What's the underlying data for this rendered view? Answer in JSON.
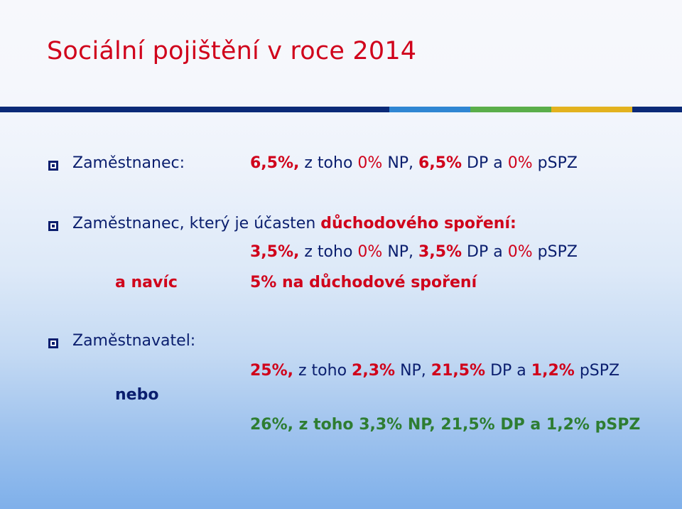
{
  "title": "Sociální pojištění v roce 2014",
  "colors": {
    "title": "#d0021b",
    "text": "#0a1e6e",
    "highlight": "#d0021b",
    "green": "#2e7d32"
  },
  "accent_bar": [
    {
      "color": "#0b2a78",
      "flex": 548
    },
    {
      "color": "#2f86d3",
      "flex": 114
    },
    {
      "color": "#5aae4a",
      "flex": 114
    },
    {
      "color": "#e3b21e",
      "flex": 114
    },
    {
      "color": "#0b2a78",
      "flex": 70
    }
  ],
  "employee": {
    "label": "Zaměstnanec:",
    "total": "6,5%,",
    "part1": "z toho",
    "np_value": "0%",
    "np": "NP,",
    "dp_value": "6,5%",
    "part2": "DP a",
    "pspz_value": "0%",
    "pspz": "pSPZ"
  },
  "saver": {
    "label_start": "Zaměstnanec, který je účasten",
    "label_highlight": "důchodového spoření:",
    "total": "3,5%,",
    "part1": "z toho",
    "np_value": "0%",
    "np": "NP,",
    "dp_value": "3,5%",
    "part2": "DP a",
    "pspz_value": "0%",
    "pspz": "pSPZ",
    "extra_label": "a navíc",
    "extra_text": "5% na důchodové spoření"
  },
  "employer": {
    "label": "Zaměstnavatel:",
    "line1": {
      "total": "25%,",
      "part1": "z toho",
      "np_value": "2,3%",
      "np": "NP,",
      "dp_value": "21,5%",
      "part2": "DP a",
      "pspz_value": "1,2%",
      "pspz": "pSPZ"
    },
    "or_label": "nebo",
    "line2": "26%, z toho 3,3% NP, 21,5% DP a 1,2% pSPZ"
  }
}
